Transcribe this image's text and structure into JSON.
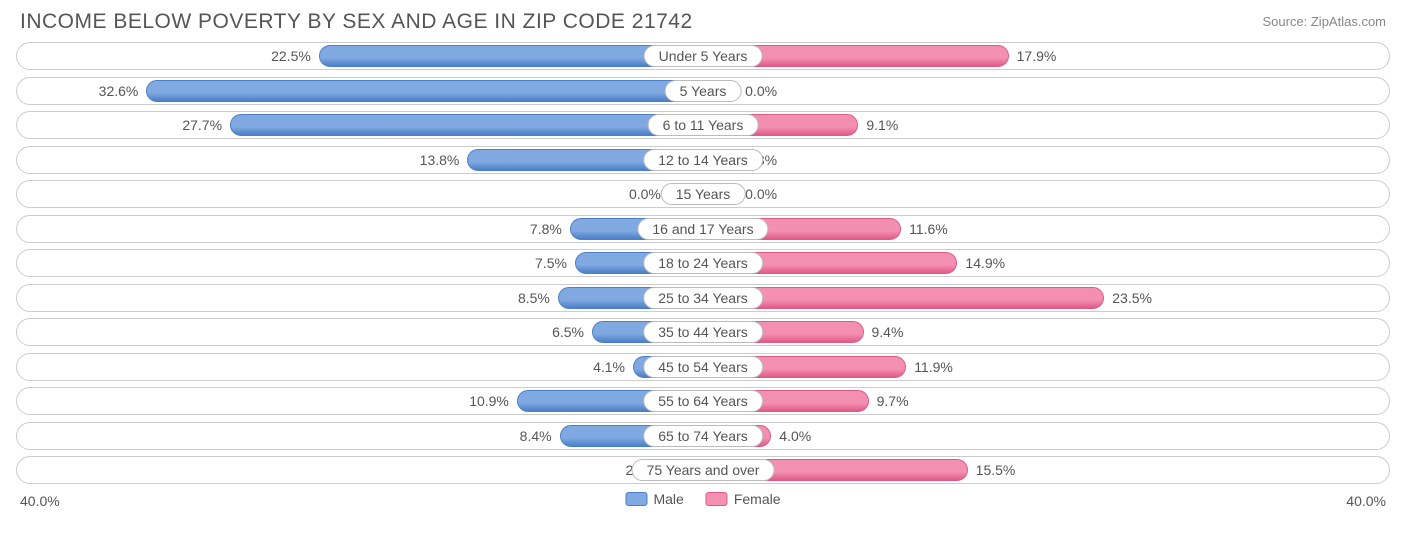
{
  "header": {
    "title": "INCOME BELOW POVERTY BY SEX AND AGE IN ZIP CODE 21742",
    "source": "Source: ZipAtlas.com"
  },
  "chart": {
    "type": "diverging-bar",
    "axis_max": 40.0,
    "axis_label_left": "40.0%",
    "axis_label_right": "40.0%",
    "min_bar_pct": 5.0,
    "colors": {
      "male_fill": "#7fa9e0",
      "male_border": "#4b7fc7",
      "female_fill": "#f38fb1",
      "female_border": "#e05a88",
      "row_border": "#cccccc",
      "text": "#555555",
      "pill_border": "#bbbbbb",
      "background": "#ffffff"
    },
    "legend": [
      {
        "label": "Male",
        "fill": "#7fa9e0",
        "border": "#4b7fc7"
      },
      {
        "label": "Female",
        "fill": "#f38fb1",
        "border": "#e05a88"
      }
    ],
    "rows": [
      {
        "category": "Under 5 Years",
        "male": 22.5,
        "female": 17.9,
        "male_label": "22.5%",
        "female_label": "17.9%"
      },
      {
        "category": "5 Years",
        "male": 32.6,
        "female": 0.0,
        "male_label": "32.6%",
        "female_label": "0.0%"
      },
      {
        "category": "6 to 11 Years",
        "male": 27.7,
        "female": 9.1,
        "male_label": "27.7%",
        "female_label": "9.1%"
      },
      {
        "category": "12 to 14 Years",
        "male": 13.8,
        "female": 1.8,
        "male_label": "13.8%",
        "female_label": "1.8%"
      },
      {
        "category": "15 Years",
        "male": 0.0,
        "female": 0.0,
        "male_label": "0.0%",
        "female_label": "0.0%"
      },
      {
        "category": "16 and 17 Years",
        "male": 7.8,
        "female": 11.6,
        "male_label": "7.8%",
        "female_label": "11.6%"
      },
      {
        "category": "18 to 24 Years",
        "male": 7.5,
        "female": 14.9,
        "male_label": "7.5%",
        "female_label": "14.9%"
      },
      {
        "category": "25 to 34 Years",
        "male": 8.5,
        "female": 23.5,
        "male_label": "8.5%",
        "female_label": "23.5%"
      },
      {
        "category": "35 to 44 Years",
        "male": 6.5,
        "female": 9.4,
        "male_label": "6.5%",
        "female_label": "9.4%"
      },
      {
        "category": "45 to 54 Years",
        "male": 4.1,
        "female": 11.9,
        "male_label": "4.1%",
        "female_label": "11.9%"
      },
      {
        "category": "55 to 64 Years",
        "male": 10.9,
        "female": 9.7,
        "male_label": "10.9%",
        "female_label": "9.7%"
      },
      {
        "category": "65 to 74 Years",
        "male": 8.4,
        "female": 4.0,
        "male_label": "8.4%",
        "female_label": "4.0%"
      },
      {
        "category": "75 Years and over",
        "male": 2.2,
        "female": 15.5,
        "male_label": "2.2%",
        "female_label": "15.5%"
      }
    ]
  }
}
